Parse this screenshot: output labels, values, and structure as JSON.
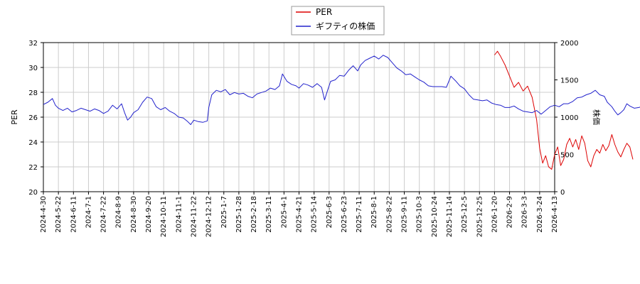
{
  "chart_data": {
    "type": "line",
    "title": "",
    "xlabel": "",
    "ylabel_left": "PER",
    "ylabel_right": "株価",
    "ylim_left": [
      20,
      32
    ],
    "ylim_right": [
      0,
      2000
    ],
    "grid": true,
    "legend_position": "top-center",
    "x_ticks": [
      "2024-4-30",
      "2024-5-22",
      "2024-6-11",
      "2024-7-1",
      "2024-7-22",
      "2024-8-9",
      "2024-8-30",
      "2024-9-20",
      "2024-10-11",
      "2024-11-1",
      "2024-11-22",
      "2024-12-12",
      "2025-1-7",
      "2025-1-28",
      "2025-2-18",
      "2025-3-11",
      "2025-4-1",
      "2025-4-21",
      "2025-5-14",
      "2025-6-3",
      "2025-6-23",
      "2025-7-11",
      "2025-8-1",
      "2025-8-22",
      "2025-9-11",
      "2025-10-3",
      "2025-10-24",
      "2025-11-14",
      "2025-12-5",
      "2025-12-25",
      "2026-1-20",
      "2026-2-9",
      "2026-3-3",
      "2026-3-24",
      "2026-4-13"
    ],
    "y_ticks_left": [
      "20",
      "22",
      "24",
      "26",
      "28",
      "30",
      "32"
    ],
    "y_ticks_right": [
      "0",
      "500",
      "1000",
      "1500",
      "2000"
    ],
    "series": [
      {
        "name": "PER",
        "axis": "left",
        "color": "#dd0000",
        "points": [
          [
            30.0,
            31.0
          ],
          [
            30.2,
            31.3
          ],
          [
            30.4,
            30.9
          ],
          [
            30.7,
            30.2
          ],
          [
            31.0,
            29.3
          ],
          [
            31.3,
            28.4
          ],
          [
            31.6,
            28.8
          ],
          [
            31.9,
            28.1
          ],
          [
            32.2,
            28.5
          ],
          [
            32.5,
            27.6
          ],
          [
            32.8,
            25.8
          ],
          [
            33.0,
            23.5
          ],
          [
            33.2,
            22.3
          ],
          [
            33.4,
            22.9
          ],
          [
            33.6,
            22.0
          ],
          [
            33.8,
            21.8
          ],
          [
            34.0,
            23.0
          ],
          [
            34.2,
            23.6
          ],
          [
            34.4,
            22.1
          ],
          [
            34.6,
            22.6
          ],
          [
            34.8,
            23.8
          ],
          [
            35.0,
            24.3
          ],
          [
            35.2,
            23.6
          ],
          [
            35.4,
            24.2
          ],
          [
            35.6,
            23.4
          ],
          [
            35.8,
            24.5
          ],
          [
            36.0,
            23.9
          ],
          [
            36.2,
            22.5
          ],
          [
            36.4,
            22.0
          ],
          [
            36.6,
            22.9
          ],
          [
            36.8,
            23.4
          ],
          [
            37.0,
            23.1
          ],
          [
            37.2,
            23.8
          ],
          [
            37.4,
            23.3
          ],
          [
            37.6,
            23.7
          ],
          [
            37.8,
            24.6
          ],
          [
            38.0,
            23.8
          ],
          [
            38.2,
            23.2
          ],
          [
            38.4,
            22.8
          ],
          [
            38.6,
            23.4
          ],
          [
            38.8,
            23.9
          ],
          [
            39.0,
            23.6
          ],
          [
            39.2,
            22.6
          ]
        ]
      },
      {
        "name": "ギフティの株価",
        "axis": "right",
        "color": "#2222cc",
        "points": [
          [
            0.0,
            1170
          ],
          [
            0.3,
            1200
          ],
          [
            0.6,
            1250
          ],
          [
            0.8,
            1160
          ],
          [
            1.0,
            1120
          ],
          [
            1.3,
            1090
          ],
          [
            1.6,
            1120
          ],
          [
            1.9,
            1070
          ],
          [
            2.2,
            1090
          ],
          [
            2.5,
            1120
          ],
          [
            2.8,
            1100
          ],
          [
            3.1,
            1080
          ],
          [
            3.4,
            1110
          ],
          [
            3.7,
            1090
          ],
          [
            4.0,
            1050
          ],
          [
            4.3,
            1080
          ],
          [
            4.6,
            1160
          ],
          [
            4.9,
            1110
          ],
          [
            5.2,
            1180
          ],
          [
            5.4,
            1060
          ],
          [
            5.6,
            960
          ],
          [
            5.8,
            1000
          ],
          [
            6.0,
            1060
          ],
          [
            6.3,
            1100
          ],
          [
            6.6,
            1200
          ],
          [
            6.9,
            1270
          ],
          [
            7.2,
            1250
          ],
          [
            7.5,
            1140
          ],
          [
            7.8,
            1100
          ],
          [
            8.1,
            1130
          ],
          [
            8.4,
            1080
          ],
          [
            8.7,
            1050
          ],
          [
            9.0,
            1000
          ],
          [
            9.3,
            990
          ],
          [
            9.6,
            940
          ],
          [
            9.8,
            900
          ],
          [
            10.0,
            960
          ],
          [
            10.3,
            940
          ],
          [
            10.6,
            930
          ],
          [
            10.9,
            950
          ],
          [
            11.0,
            1130
          ],
          [
            11.2,
            1300
          ],
          [
            11.5,
            1360
          ],
          [
            11.8,
            1340
          ],
          [
            12.1,
            1370
          ],
          [
            12.4,
            1300
          ],
          [
            12.7,
            1330
          ],
          [
            13.0,
            1310
          ],
          [
            13.3,
            1320
          ],
          [
            13.6,
            1280
          ],
          [
            13.9,
            1260
          ],
          [
            14.2,
            1310
          ],
          [
            14.5,
            1330
          ],
          [
            14.8,
            1350
          ],
          [
            15.1,
            1390
          ],
          [
            15.4,
            1370
          ],
          [
            15.7,
            1420
          ],
          [
            15.9,
            1580
          ],
          [
            16.2,
            1480
          ],
          [
            16.5,
            1440
          ],
          [
            16.8,
            1420
          ],
          [
            17.0,
            1390
          ],
          [
            17.3,
            1450
          ],
          [
            17.6,
            1430
          ],
          [
            17.9,
            1400
          ],
          [
            18.2,
            1450
          ],
          [
            18.5,
            1400
          ],
          [
            18.7,
            1230
          ],
          [
            18.9,
            1360
          ],
          [
            19.1,
            1480
          ],
          [
            19.4,
            1500
          ],
          [
            19.7,
            1560
          ],
          [
            20.0,
            1550
          ],
          [
            20.3,
            1630
          ],
          [
            20.6,
            1690
          ],
          [
            20.9,
            1620
          ],
          [
            21.1,
            1700
          ],
          [
            21.4,
            1760
          ],
          [
            21.7,
            1790
          ],
          [
            22.0,
            1820
          ],
          [
            22.3,
            1780
          ],
          [
            22.6,
            1830
          ],
          [
            22.9,
            1800
          ],
          [
            23.2,
            1730
          ],
          [
            23.5,
            1660
          ],
          [
            23.8,
            1620
          ],
          [
            24.1,
            1570
          ],
          [
            24.4,
            1580
          ],
          [
            24.7,
            1540
          ],
          [
            25.0,
            1500
          ],
          [
            25.3,
            1470
          ],
          [
            25.6,
            1420
          ],
          [
            25.9,
            1410
          ],
          [
            26.2,
            1410
          ],
          [
            26.5,
            1410
          ],
          [
            26.8,
            1400
          ],
          [
            27.1,
            1550
          ],
          [
            27.4,
            1490
          ],
          [
            27.7,
            1420
          ],
          [
            28.0,
            1380
          ],
          [
            28.3,
            1300
          ],
          [
            28.6,
            1240
          ],
          [
            28.9,
            1230
          ],
          [
            29.2,
            1220
          ],
          [
            29.5,
            1230
          ],
          [
            29.8,
            1190
          ],
          [
            30.1,
            1170
          ],
          [
            30.4,
            1160
          ],
          [
            30.7,
            1130
          ],
          [
            31.0,
            1130
          ],
          [
            31.3,
            1150
          ],
          [
            31.6,
            1110
          ],
          [
            31.9,
            1080
          ],
          [
            32.2,
            1070
          ],
          [
            32.5,
            1060
          ],
          [
            32.8,
            1090
          ],
          [
            33.1,
            1040
          ],
          [
            33.4,
            1090
          ],
          [
            33.7,
            1140
          ],
          [
            34.0,
            1160
          ],
          [
            34.3,
            1140
          ],
          [
            34.6,
            1180
          ],
          [
            34.9,
            1180
          ],
          [
            35.2,
            1210
          ],
          [
            35.5,
            1260
          ],
          [
            35.8,
            1270
          ],
          [
            36.1,
            1300
          ],
          [
            36.4,
            1320
          ],
          [
            36.7,
            1360
          ],
          [
            37.0,
            1300
          ],
          [
            37.3,
            1280
          ],
          [
            37.5,
            1200
          ],
          [
            37.8,
            1140
          ],
          [
            38.0,
            1080
          ],
          [
            38.2,
            1030
          ],
          [
            38.4,
            1060
          ],
          [
            38.6,
            1100
          ],
          [
            38.8,
            1180
          ],
          [
            39.0,
            1150
          ],
          [
            39.3,
            1120
          ],
          [
            39.6,
            1130
          ],
          [
            39.9,
            1150
          ],
          [
            40.2,
            1120
          ],
          [
            40.5,
            1110
          ],
          [
            40.8,
            1140
          ],
          [
            41.1,
            1110
          ],
          [
            41.4,
            1080
          ],
          [
            41.7,
            1050
          ],
          [
            42.0,
            1080
          ],
          [
            42.3,
            1060
          ],
          [
            42.6,
            1100
          ]
        ]
      }
    ]
  }
}
